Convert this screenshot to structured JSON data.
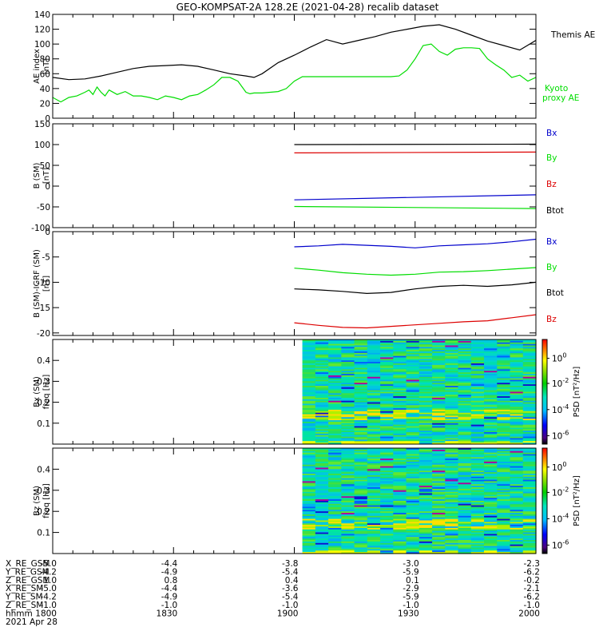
{
  "title": "GEO-KOMPSAT-2A 128.2E (2021-04-28) recalib dataset",
  "chart_data": [
    {
      "type": "line",
      "panel": "ae",
      "ylabel": "AE index",
      "yunit": "[nT]",
      "ylim": [
        0,
        140
      ],
      "yticks": [
        "0",
        "20",
        "40",
        "60",
        "80",
        "100",
        "120",
        "140"
      ],
      "yticks_values": [
        0,
        20,
        40,
        60,
        80,
        100,
        120,
        140
      ],
      "series": [
        {
          "name": "Themis AE",
          "color": "#000000",
          "x": [
            0,
            4,
            8,
            12,
            16,
            20,
            24,
            28,
            32,
            36,
            40,
            44,
            48,
            50,
            52,
            56,
            60,
            64,
            68,
            72,
            76,
            80,
            84,
            88,
            92,
            96,
            100,
            104,
            108,
            112,
            116,
            120
          ],
          "y": [
            55,
            52,
            53,
            57,
            62,
            67,
            70,
            71,
            72,
            70,
            65,
            60,
            57,
            55,
            60,
            75,
            85,
            96,
            106,
            100,
            105,
            110,
            116,
            120,
            124,
            126,
            120,
            112,
            104,
            98,
            92,
            105
          ]
        },
        {
          "name": "Kyoto proxy AE",
          "color": "#00dd00",
          "x": [
            0,
            2,
            4,
            6,
            8,
            9,
            10,
            11,
            12,
            13,
            14,
            16,
            18,
            20,
            22,
            24,
            26,
            28,
            30,
            32,
            34,
            36,
            38,
            40,
            42,
            44,
            46,
            48,
            49,
            50,
            52,
            54,
            56,
            58,
            60,
            62,
            64,
            66,
            68,
            70,
            72,
            74,
            76,
            78,
            80,
            82,
            84,
            86,
            88,
            90,
            92,
            94,
            96,
            98,
            100,
            102,
            104,
            106,
            108,
            110,
            112,
            114,
            116,
            118,
            120
          ],
          "y": [
            28,
            22,
            28,
            30,
            35,
            38,
            32,
            42,
            35,
            30,
            38,
            32,
            36,
            30,
            30,
            28,
            25,
            30,
            28,
            25,
            30,
            32,
            38,
            45,
            55,
            55,
            50,
            35,
            33,
            34,
            34,
            35,
            36,
            40,
            50,
            56,
            56,
            56,
            56,
            56,
            56,
            56,
            56,
            56,
            56,
            56,
            56,
            57,
            65,
            80,
            98,
            100,
            90,
            85,
            93,
            95,
            95,
            94,
            80,
            72,
            65,
            55,
            58,
            50,
            55
          ]
        }
      ]
    },
    {
      "type": "line",
      "panel": "b_sm",
      "ylabel": "B (SM)",
      "yunit": "[nT]",
      "ylim": [
        -100,
        150
      ],
      "yticks": [
        "-100",
        "-50",
        "0",
        "50",
        "100",
        "150"
      ],
      "yticks_values": [
        -100,
        -50,
        0,
        50,
        100,
        150
      ],
      "series": [
        {
          "name": "Bx",
          "color": "#0000cc",
          "x": [
            60,
            120
          ],
          "y": [
            -33,
            -21
          ]
        },
        {
          "name": "By",
          "color": "#00dd00",
          "x": [
            60,
            120
          ],
          "y": [
            -49,
            -54
          ]
        },
        {
          "name": "Bz",
          "color": "#dd0000",
          "x": [
            60,
            120
          ],
          "y": [
            80,
            82
          ]
        },
        {
          "name": "Btot",
          "color": "#000000",
          "x": [
            60,
            120
          ],
          "y": [
            100,
            101
          ]
        }
      ]
    },
    {
      "type": "line",
      "panel": "b_sm_igrf",
      "ylabel": "B (SM)-IGRF (SM)",
      "yunit": "[nT]",
      "ylim": [
        -20.5,
        0
      ],
      "yticks": [
        "-20",
        "-15",
        "-10",
        "-5",
        "0"
      ],
      "yticks_values": [
        -20,
        -15,
        -10,
        -5,
        0
      ],
      "series": [
        {
          "name": "Bx",
          "color": "#0000cc",
          "x": [
            60,
            66,
            72,
            78,
            84,
            90,
            96,
            102,
            108,
            114,
            120
          ],
          "y": [
            -3.0,
            -2.8,
            -2.5,
            -2.7,
            -2.9,
            -3.2,
            -2.8,
            -2.6,
            -2.4,
            -2.0,
            -1.5
          ]
        },
        {
          "name": "By",
          "color": "#00dd00",
          "x": [
            60,
            66,
            72,
            78,
            84,
            90,
            96,
            102,
            108,
            114,
            120
          ],
          "y": [
            -7.2,
            -7.6,
            -8.1,
            -8.4,
            -8.6,
            -8.4,
            -8.0,
            -7.9,
            -7.7,
            -7.4,
            -7.1
          ]
        },
        {
          "name": "Btot",
          "color": "#000000",
          "x": [
            60,
            66,
            72,
            78,
            84,
            90,
            96,
            102,
            108,
            114,
            120
          ],
          "y": [
            -11.3,
            -11.5,
            -11.8,
            -12.2,
            -12.0,
            -11.3,
            -10.8,
            -10.6,
            -10.8,
            -10.5,
            -10.0
          ]
        },
        {
          "name": "Bz",
          "color": "#dd0000",
          "x": [
            60,
            66,
            72,
            78,
            84,
            90,
            96,
            102,
            108,
            114,
            120
          ],
          "y": [
            -18.0,
            -18.5,
            -18.9,
            -19.0,
            -18.7,
            -18.4,
            -18.1,
            -17.8,
            -17.6,
            -17.0,
            -16.4
          ]
        }
      ]
    },
    {
      "type": "heatmap",
      "panel": "bx_psd",
      "ylabel": "Bx (SM)",
      "yunit": "freq [Hz]",
      "ylim": [
        0,
        0.5
      ],
      "yticks": [
        "0.1",
        "0.2",
        "0.3",
        "0.4"
      ],
      "yticks_values": [
        0.1,
        0.2,
        0.3,
        0.4
      ],
      "x_start": 62,
      "colorbar_label": "PSD [nT²/Hz]",
      "colorbar_ticks": [
        {
          "label": "10",
          "exp": "0",
          "frac": 0.82
        },
        {
          "label": "10",
          "exp": "-2",
          "frac": 0.58
        },
        {
          "label": "10",
          "exp": "-4",
          "frac": 0.33
        },
        {
          "label": "10",
          "exp": "-6",
          "frac": 0.08
        }
      ]
    },
    {
      "type": "heatmap",
      "panel": "bz_psd",
      "ylabel": "Bz (SM)",
      "yunit": "freq [Hz]",
      "ylim": [
        0,
        0.5
      ],
      "yticks": [
        "0.1",
        "0.2",
        "0.3",
        "0.4"
      ],
      "yticks_values": [
        0.1,
        0.2,
        0.3,
        0.4
      ],
      "x_start": 62,
      "colorbar_label": "PSD [nT²/Hz]",
      "colorbar_ticks": [
        {
          "label": "10",
          "exp": "0",
          "frac": 0.82
        },
        {
          "label": "10",
          "exp": "-2",
          "frac": 0.58
        },
        {
          "label": "10",
          "exp": "-4",
          "frac": 0.33
        },
        {
          "label": "10",
          "exp": "-6",
          "frac": 0.08
        }
      ]
    }
  ],
  "orbit_table": {
    "rows": [
      {
        "label": "X_RE_GSM",
        "values": [
          "-5.0",
          "-4.4",
          "-3.8",
          "-3.0",
          "-2.3"
        ]
      },
      {
        "label": "Y_RE_GSM",
        "values": [
          "-4.2",
          "-4.9",
          "-5.4",
          "-5.9",
          "-6.2"
        ]
      },
      {
        "label": "Z_RE_GSM",
        "values": [
          "1.0",
          "0.8",
          "0.4",
          "0.1",
          "-0.2"
        ]
      },
      {
        "label": "X_RE_SM",
        "values": [
          "-5.0",
          "-4.4",
          "-3.6",
          "-2.9",
          "-2.1"
        ]
      },
      {
        "label": "Y_RE_SM",
        "values": [
          "-4.2",
          "-4.9",
          "-5.4",
          "-5.9",
          "-6.2"
        ]
      },
      {
        "label": "Z_RE_SM",
        "values": [
          "-1.0",
          "-1.0",
          "-1.0",
          "-1.0",
          "-1.0"
        ]
      },
      {
        "label": "hhmm",
        "values": [
          "1800",
          "1830",
          "1900",
          "1930",
          "2000"
        ]
      }
    ],
    "date": "2021 Apr 28"
  },
  "x_axis": {
    "min": 0,
    "max": 120,
    "major": [
      0,
      30,
      60,
      90,
      120
    ]
  },
  "colors": {
    "btot": "#000000",
    "bx": "#0000cc",
    "by": "#00dd00",
    "bz": "#dd0000"
  }
}
